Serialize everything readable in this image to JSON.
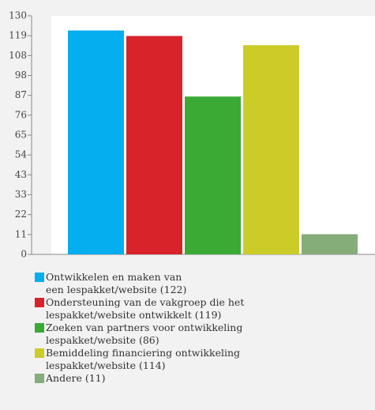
{
  "chart_data": {
    "type": "bar",
    "categories": [
      "Ontwikkelen en maken van\neen lespakket/website (122)",
      "Ondersteuning van de vakgroep die het\nlespakket/website ontwikkelt (119)",
      "Zoeken van partners voor ontwikkeling\nlespakket/website (86)",
      "Bemiddeling financiering ontwikkeling\nlespakket/website (114)",
      "Andere (11)"
    ],
    "values": [
      122,
      119,
      86,
      114,
      11
    ],
    "colors": [
      "#05aeef",
      "#d8232a",
      "#3aaa35",
      "#cccc29",
      "#85ad7a"
    ],
    "ylim": [
      0,
      130
    ],
    "yticks": [
      0,
      {
        "value": 10.833,
        "label": "11"
      },
      {
        "value": 21.667,
        "label": "22"
      },
      {
        "value": 32.5,
        "label": "33"
      },
      {
        "value": 43.333,
        "label": "43"
      },
      {
        "value": 54.167,
        "label": "54"
      },
      65,
      {
        "value": 75.833,
        "label": "76"
      },
      {
        "value": 86.667,
        "label": "87"
      },
      {
        "value": 97.5,
        "label": "98"
      },
      {
        "value": 108.333,
        "label": "108"
      },
      {
        "value": 119.167,
        "label": "119"
      },
      130
    ],
    "legend": "bottom"
  }
}
